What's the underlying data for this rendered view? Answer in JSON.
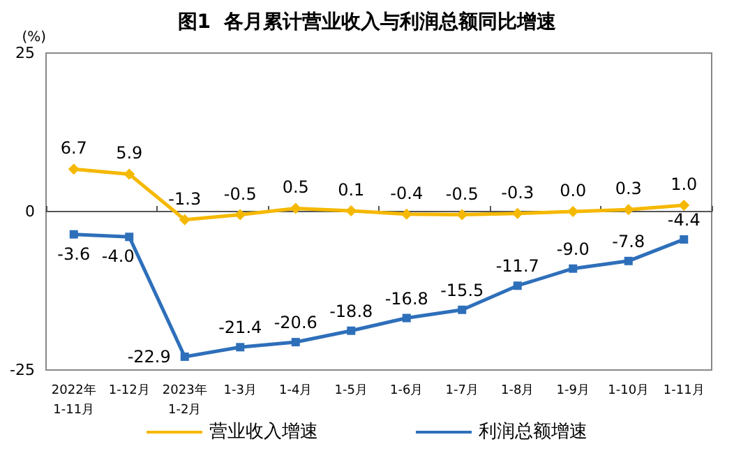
{
  "chart_data": {
    "type": "line",
    "title": "图1  各月累计营业收入与利润总额同比增速",
    "ylabel": "(%)",
    "categories": [
      "2022年\n1-11月",
      "1-12月",
      "2023年\n1-2月",
      "1-3月",
      "1-4月",
      "1-5月",
      "1-6月",
      "1-7月",
      "1-8月",
      "1-9月",
      "1-10月",
      "1-11月"
    ],
    "series": [
      {
        "name": "营业收入增速",
        "color": "#f5b800",
        "marker": "diamond",
        "values": [
          6.7,
          5.9,
          -1.3,
          -0.5,
          0.5,
          0.1,
          -0.4,
          -0.5,
          -0.3,
          0.0,
          0.3,
          1.0
        ],
        "value_labels": [
          "6.7",
          "5.9",
          "-1.3",
          "-0.5",
          "0.5",
          "0.1",
          "-0.4",
          "-0.5",
          "-0.3",
          "0.0",
          "0.3",
          "1.0"
        ]
      },
      {
        "name": "利润总额增速",
        "color": "#2e6fba",
        "marker": "square",
        "values": [
          -3.6,
          -4.0,
          -22.9,
          -21.4,
          -20.6,
          -18.8,
          -16.8,
          -15.5,
          -11.7,
          -9.0,
          -7.8,
          -4.4
        ],
        "value_labels": [
          "-3.6",
          "-4.0",
          "-22.9",
          "-21.4",
          "-20.6",
          "-18.8",
          "-16.8",
          "-15.5",
          "-11.7",
          "-9.0",
          "-7.8",
          "-4.4"
        ]
      }
    ],
    "ylim": [
      -25,
      25
    ],
    "yticks": [
      -25,
      0,
      25
    ],
    "legend": "bottom"
  }
}
